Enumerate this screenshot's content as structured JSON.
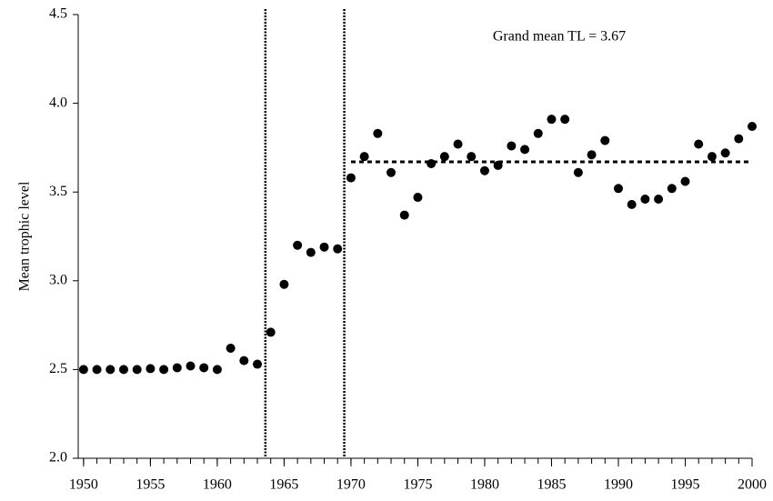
{
  "chart_data": {
    "type": "scatter",
    "y_label": "Mean trophic level",
    "annotation": "Grand mean TL = 3.67",
    "x": [
      1950,
      1951,
      1952,
      1953,
      1954,
      1955,
      1956,
      1957,
      1958,
      1959,
      1960,
      1961,
      1962,
      1963,
      1964,
      1965,
      1966,
      1967,
      1968,
      1969,
      1970,
      1971,
      1972,
      1973,
      1974,
      1975,
      1976,
      1977,
      1978,
      1979,
      1980,
      1981,
      1982,
      1983,
      1984,
      1985,
      1986,
      1987,
      1988,
      1989,
      1990,
      1991,
      1992,
      1993,
      1994,
      1995,
      1996,
      1997,
      1998,
      1999,
      2000
    ],
    "values": [
      2.5,
      2.5,
      2.5,
      2.5,
      2.5,
      2.505,
      2.5,
      2.51,
      2.52,
      2.51,
      2.5,
      2.62,
      2.55,
      2.53,
      2.71,
      2.98,
      3.2,
      3.16,
      3.19,
      3.18,
      3.58,
      3.7,
      3.83,
      3.61,
      3.37,
      3.47,
      3.66,
      3.7,
      3.77,
      3.7,
      3.62,
      3.65,
      3.76,
      3.74,
      3.83,
      3.91,
      3.91,
      3.61,
      3.71,
      3.79,
      3.52,
      3.43,
      3.46,
      3.46,
      3.52,
      3.56,
      3.77,
      3.7,
      3.72,
      3.8,
      3.87
    ],
    "color": "#000000",
    "breaks": [
      1963.6,
      1969.5
    ],
    "mean_line": {
      "value": 3.67,
      "x": [
        1970,
        2000
      ]
    },
    "xlim": [
      1949.6,
      2000
    ],
    "xticks": [
      1950,
      1955,
      1960,
      1965,
      1970,
      1975,
      1980,
      1985,
      1990,
      1995,
      2000
    ],
    "xminor_step": 1,
    "ylim": [
      2.0,
      4.5
    ],
    "yticks": [
      {
        "value": 2.0,
        "label": "2.0"
      },
      {
        "value": 2.5,
        "label": "2.5"
      },
      {
        "value": 3.0,
        "label": "3.0"
      },
      {
        "value": 3.5,
        "label": "3.5"
      },
      {
        "value": 4.0,
        "label": "4.0"
      },
      {
        "value": 4.5,
        "label": "4.5"
      }
    ]
  }
}
